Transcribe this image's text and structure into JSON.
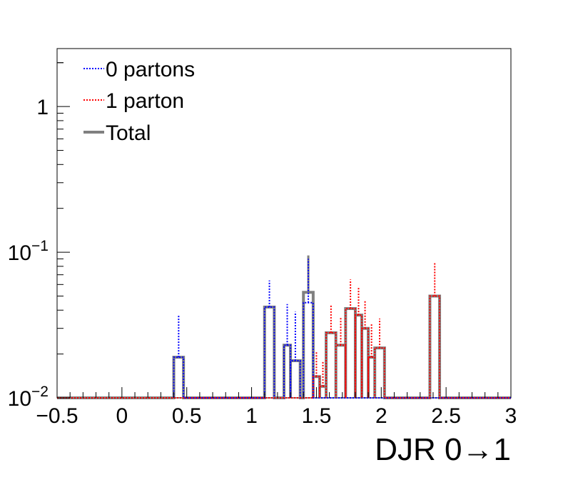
{
  "chart_data": {
    "type": "line",
    "xlabel": "DJR 0→1",
    "ylabel": "",
    "log_y": true,
    "xlim": [
      -0.5,
      3.0
    ],
    "ylim": [
      0.01,
      2.5
    ],
    "x_ticks": [
      {
        "value": -0.5,
        "label": "−0.5"
      },
      {
        "value": 0,
        "label": "0"
      },
      {
        "value": 0.5,
        "label": "0.5"
      },
      {
        "value": 1,
        "label": "1"
      },
      {
        "value": 1.5,
        "label": "1.5"
      },
      {
        "value": 2,
        "label": "2"
      },
      {
        "value": 2.5,
        "label": "2.5"
      },
      {
        "value": 3,
        "label": "3"
      }
    ],
    "y_ticks": [
      {
        "value": 0.01,
        "base": "10",
        "exp": "−2"
      },
      {
        "value": 0.1,
        "base": "10",
        "exp": "−1"
      },
      {
        "value": 1,
        "base": "1",
        "exp": ""
      }
    ],
    "legend_position": "top-left",
    "grid": false,
    "series": [
      {
        "name": "0 partons",
        "color": "#0000ff",
        "style": "dotted",
        "show_errors": true,
        "bins": [
          {
            "x0": 0.4,
            "x1": 0.475,
            "y": 0.019,
            "err_hi": 0.037
          },
          {
            "x0": 1.1,
            "x1": 1.175,
            "y": 0.042,
            "err_hi": 0.064
          },
          {
            "x0": 1.25,
            "x1": 1.3,
            "y": 0.023,
            "err_hi": 0.044
          },
          {
            "x0": 1.3,
            "x1": 1.375,
            "y": 0.018,
            "err_hi": 0.039
          },
          {
            "x0": 1.4,
            "x1": 1.475,
            "y": 0.045,
            "err_hi": 0.09
          }
        ]
      },
      {
        "name": "1 parton",
        "color": "#ff0000",
        "style": "dotted",
        "show_errors": true,
        "bins": [
          {
            "x0": 1.475,
            "x1": 1.525,
            "y": 0.014,
            "err_hi": 0.021
          },
          {
            "x0": 1.525,
            "x1": 1.575,
            "y": 0.012,
            "err_hi": 0.018
          },
          {
            "x0": 1.575,
            "x1": 1.65,
            "y": 0.028,
            "err_hi": 0.043
          },
          {
            "x0": 1.65,
            "x1": 1.725,
            "y": 0.023,
            "err_hi": 0.036
          },
          {
            "x0": 1.725,
            "x1": 1.8,
            "y": 0.041,
            "err_hi": 0.065
          },
          {
            "x0": 1.8,
            "x1": 1.85,
            "y": 0.037,
            "err_hi": 0.057
          },
          {
            "x0": 1.85,
            "x1": 1.9,
            "y": 0.03,
            "err_hi": 0.047
          },
          {
            "x0": 1.9,
            "x1": 1.95,
            "y": 0.019,
            "err_hi": 0.032
          },
          {
            "x0": 1.95,
            "x1": 2.025,
            "y": 0.022,
            "err_hi": 0.035
          },
          {
            "x0": 2.375,
            "x1": 2.45,
            "y": 0.05,
            "err_hi": 0.085
          }
        ]
      },
      {
        "name": "Total",
        "color": "#808080",
        "style": "solid",
        "show_errors": false,
        "bins": [
          {
            "x0": 0.4,
            "x1": 0.475,
            "y": 0.019
          },
          {
            "x0": 1.1,
            "x1": 1.175,
            "y": 0.042
          },
          {
            "x0": 1.25,
            "x1": 1.3,
            "y": 0.023
          },
          {
            "x0": 1.3,
            "x1": 1.375,
            "y": 0.018
          },
          {
            "x0": 1.4,
            "x1": 1.475,
            "y": 0.053,
            "err_hi": 0.095
          },
          {
            "x0": 1.475,
            "x1": 1.525,
            "y": 0.014
          },
          {
            "x0": 1.525,
            "x1": 1.575,
            "y": 0.012
          },
          {
            "x0": 1.575,
            "x1": 1.65,
            "y": 0.028
          },
          {
            "x0": 1.65,
            "x1": 1.725,
            "y": 0.023
          },
          {
            "x0": 1.725,
            "x1": 1.8,
            "y": 0.041
          },
          {
            "x0": 1.8,
            "x1": 1.85,
            "y": 0.037
          },
          {
            "x0": 1.85,
            "x1": 1.9,
            "y": 0.03
          },
          {
            "x0": 1.9,
            "x1": 1.95,
            "y": 0.019
          },
          {
            "x0": 1.95,
            "x1": 2.025,
            "y": 0.022
          },
          {
            "x0": 2.375,
            "x1": 2.45,
            "y": 0.05
          }
        ]
      }
    ]
  }
}
